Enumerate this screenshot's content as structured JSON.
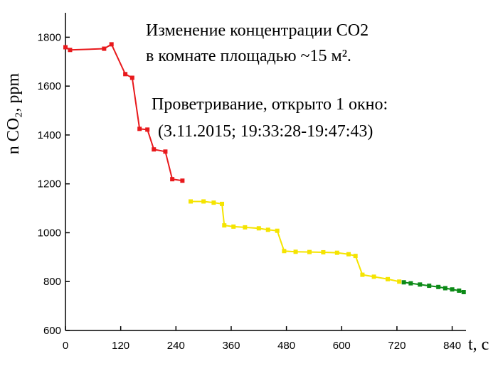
{
  "chart_data": {
    "type": "line",
    "y_label": "n CO₂, ppm",
    "x_label": "t, c",
    "annotations": [
      "Изменение концентрации CO2",
      "в комнате площадью ~15 м².",
      "Проветривание, открыто 1 окно:",
      "(3.11.2015;  19:33:28-19:47:43)"
    ],
    "xlim": [
      0,
      870
    ],
    "xticks": [
      0,
      120,
      240,
      360,
      480,
      600,
      720,
      840
    ],
    "ylim": [
      600,
      1900
    ],
    "yticks": [
      600,
      800,
      1000,
      1200,
      1400,
      1600,
      1800
    ],
    "series": [
      {
        "color": "#e8191c",
        "x": [
          0,
          10,
          84,
          100,
          130,
          145,
          161,
          178,
          192,
          217,
          232,
          254
        ],
        "values": [
          1759,
          1748,
          1753,
          1771,
          1649,
          1634,
          1425,
          1422,
          1341,
          1332,
          1219,
          1213
        ]
      },
      {
        "color": "#f5e400",
        "x": [
          272,
          300,
          322,
          340,
          345,
          365,
          390,
          420,
          440,
          460,
          475,
          500,
          530,
          560,
          590,
          615,
          630,
          645,
          670,
          700,
          725
        ],
        "values": [
          1128,
          1128,
          1123,
          1118,
          1030,
          1025,
          1022,
          1018,
          1012,
          1008,
          925,
          922,
          921,
          920,
          918,
          912,
          905,
          828,
          820,
          810,
          800
        ]
      },
      {
        "color": "#0c8a17",
        "x": [
          735,
          750,
          770,
          790,
          810,
          825,
          840,
          855,
          865
        ],
        "values": [
          797,
          793,
          788,
          783,
          778,
          773,
          768,
          763,
          757
        ]
      }
    ]
  }
}
